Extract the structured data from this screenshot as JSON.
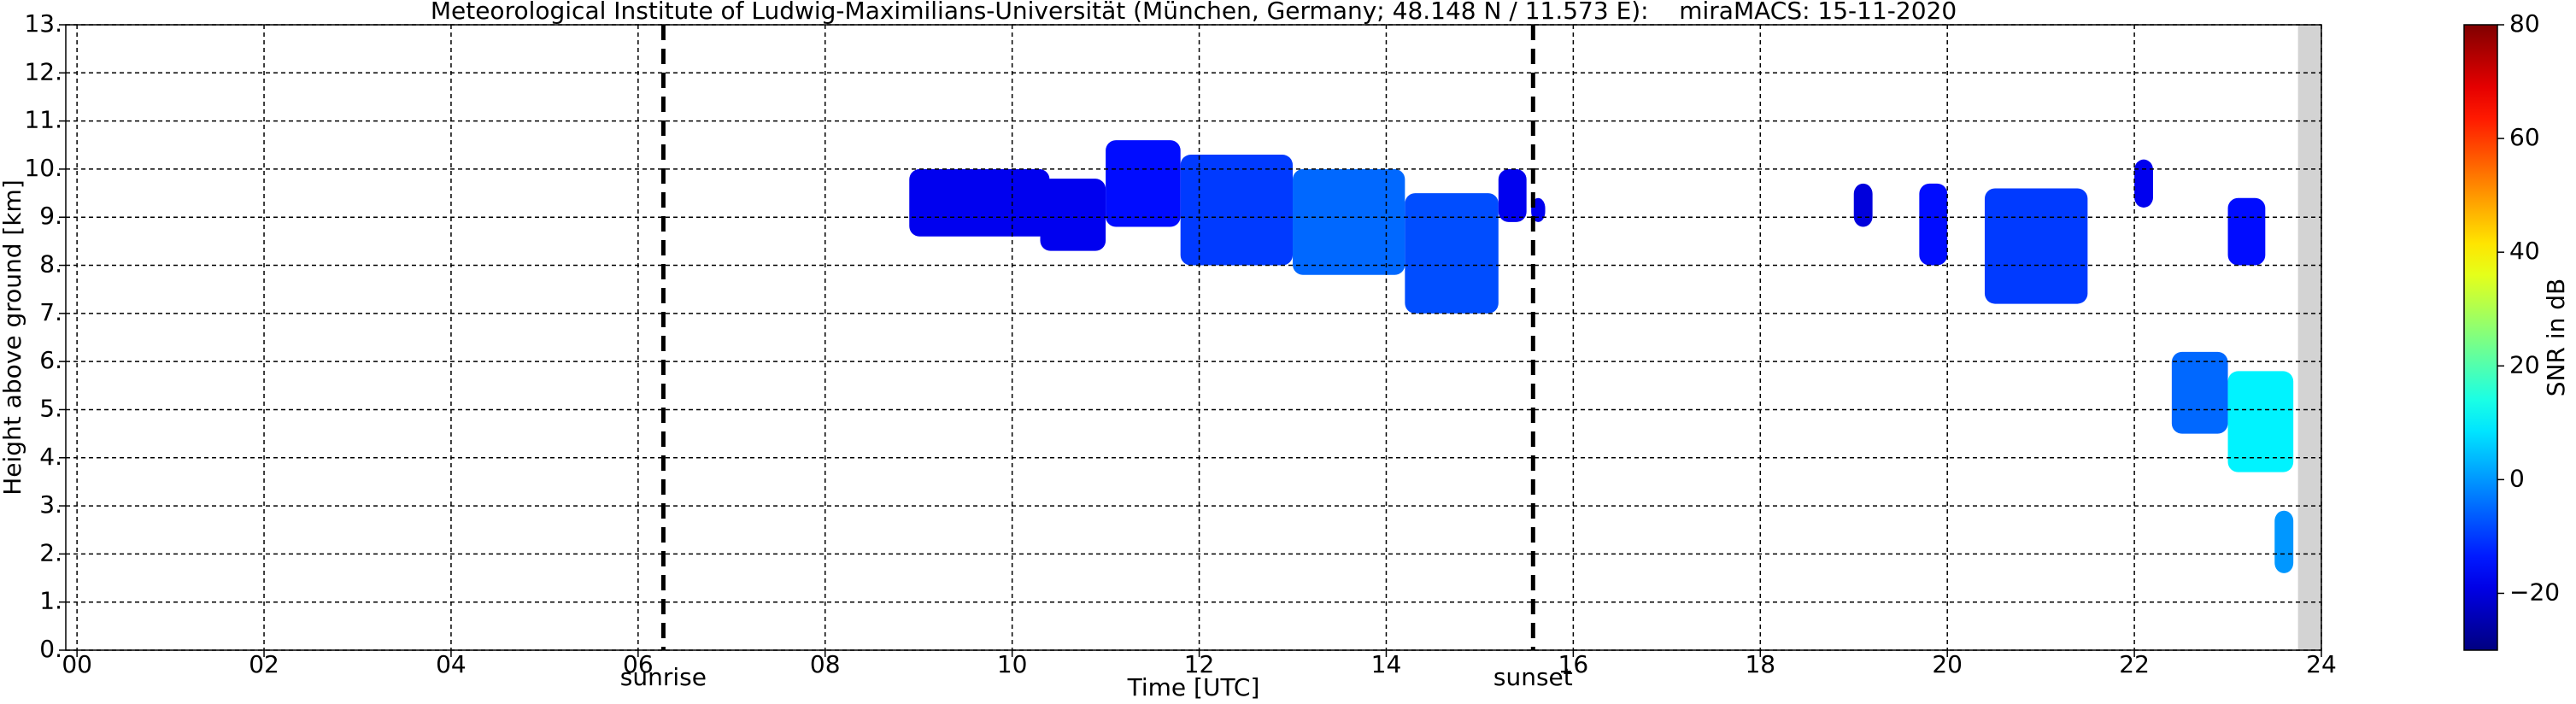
{
  "chart_data": {
    "type": "heatmap",
    "title": "Meteorological Institute of Ludwig-Maximilians-Universität (München, Germany; 48.148 N / 11.573 E):    miraMACS: 15-11-2020",
    "x_label": "Time [UTC]",
    "y_label": "Height above ground [km]",
    "xlim": [
      -0.12,
      24
    ],
    "xticks": [
      {
        "value": 0,
        "label": "00"
      },
      {
        "value": 2,
        "label": "02"
      },
      {
        "value": 4,
        "label": "04"
      },
      {
        "value": 6,
        "label": "06"
      },
      {
        "value": 8,
        "label": "08"
      },
      10,
      12,
      14,
      16,
      18,
      20,
      22,
      24
    ],
    "ylim": [
      0,
      13
    ],
    "yticks": [
      {
        "value": 0,
        "label": "0."
      },
      {
        "value": 1,
        "label": "1."
      },
      {
        "value": 2,
        "label": "2."
      },
      {
        "value": 3,
        "label": "3."
      },
      {
        "value": 4,
        "label": "4."
      },
      {
        "value": 5,
        "label": "5."
      },
      {
        "value": 6,
        "label": "6."
      },
      {
        "value": 7,
        "label": "7."
      },
      {
        "value": 8,
        "label": "8."
      },
      {
        "value": 9,
        "label": "9."
      },
      {
        "value": 10,
        "label": "10."
      },
      {
        "value": 11,
        "label": "11."
      },
      {
        "value": 12,
        "label": "12."
      },
      {
        "value": 13,
        "label": "13."
      }
    ],
    "grid": true,
    "colormap": "jet",
    "clim": [
      -30,
      80
    ],
    "colorbar_label": "SNR in dB",
    "colorbar_ticks": [
      {
        "value": -20,
        "label": "−20"
      },
      0,
      20,
      40,
      60,
      80
    ],
    "missing": [
      23.75,
      24
    ],
    "events": [
      {
        "name": "sunrise",
        "x": 6.27
      },
      {
        "name": "sunset",
        "x": 15.57
      }
    ],
    "patches": [
      {
        "x": [
          8.9,
          10.4
        ],
        "y": [
          8.6,
          10.0
        ],
        "value": -18
      },
      {
        "x": [
          10.3,
          11.0
        ],
        "y": [
          8.3,
          9.8
        ],
        "value": -18
      },
      {
        "x": [
          11.0,
          11.8
        ],
        "y": [
          8.8,
          10.6
        ],
        "value": -15
      },
      {
        "x": [
          11.8,
          13.0
        ],
        "y": [
          8.0,
          10.3
        ],
        "value": -10
      },
      {
        "x": [
          13.0,
          14.2
        ],
        "y": [
          7.8,
          10.0
        ],
        "value": -5
      },
      {
        "x": [
          14.2,
          15.2
        ],
        "y": [
          7.0,
          9.5
        ],
        "value": -8
      },
      {
        "x": [
          15.2,
          15.5
        ],
        "y": [
          8.9,
          10.0
        ],
        "value": -18
      },
      {
        "x": [
          15.55,
          15.7
        ],
        "y": [
          8.9,
          9.4
        ],
        "value": -18
      },
      {
        "x": [
          19.0,
          19.2
        ],
        "y": [
          8.8,
          9.7
        ],
        "value": -20
      },
      {
        "x": [
          19.7,
          20.0
        ],
        "y": [
          8.0,
          9.7
        ],
        "value": -15
      },
      {
        "x": [
          20.4,
          21.5
        ],
        "y": [
          7.2,
          9.6
        ],
        "value": -10
      },
      {
        "x": [
          22.0,
          22.2
        ],
        "y": [
          9.2,
          10.2
        ],
        "value": -18
      },
      {
        "x": [
          23.0,
          23.4
        ],
        "y": [
          8.0,
          9.4
        ],
        "value": -15
      },
      {
        "x": [
          22.4,
          23.0
        ],
        "y": [
          4.5,
          6.2
        ],
        "value": -5
      },
      {
        "x": [
          23.0,
          23.7
        ],
        "y": [
          3.7,
          5.8
        ],
        "value": 10
      },
      {
        "x": [
          23.5,
          23.7
        ],
        "y": [
          1.6,
          2.9
        ],
        "value": 0
      }
    ]
  }
}
